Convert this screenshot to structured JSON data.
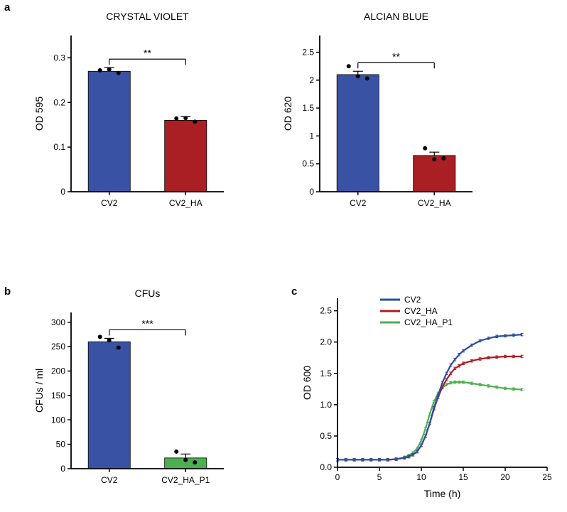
{
  "panelA": {
    "label": "a",
    "crystalViolet": {
      "title": "CRYSTAL VIOLET",
      "title_fontsize": 14,
      "ylabel": "OD 595",
      "ylabel_fontsize": 14,
      "ylim": [
        0.0,
        0.35
      ],
      "yticks": [
        0.0,
        0.1,
        0.2,
        0.3
      ],
      "categories": [
        "CV2",
        "CV2_HA"
      ],
      "values": [
        0.27,
        0.16
      ],
      "errors": [
        0.008,
        0.008
      ],
      "scatter": [
        [
          0.272,
          0.274,
          0.266
        ],
        [
          0.164,
          0.165,
          0.157
        ]
      ],
      "bar_colors": [
        "#3952a4",
        "#a91f24"
      ],
      "bg": "#ffffff",
      "axis_color": "#000000",
      "text_color": "#000000",
      "bar_width": 0.55,
      "significance": "**"
    },
    "alcianBlue": {
      "title": "ALCIAN BLUE",
      "title_fontsize": 14,
      "ylabel": "OD 620",
      "ylabel_fontsize": 14,
      "ylim": [
        0.0,
        2.8
      ],
      "yticks": [
        0.0,
        0.5,
        1.0,
        1.5,
        2.0,
        2.5
      ],
      "categories": [
        "CV2",
        "CV2_HA"
      ],
      "values": [
        2.1,
        0.65
      ],
      "errors": [
        0.06,
        0.06
      ],
      "scatter": [
        [
          2.25,
          2.07,
          2.03
        ],
        [
          0.78,
          0.58,
          0.6
        ]
      ],
      "bar_colors": [
        "#3952a4",
        "#a91f24"
      ],
      "bg": "#ffffff",
      "axis_color": "#000000",
      "text_color": "#000000",
      "bar_width": 0.55,
      "significance": "**"
    }
  },
  "panelB": {
    "label": "b",
    "cfu": {
      "title": "CFUs",
      "title_fontsize": 14,
      "ylabel": "CFUs / ml",
      "ylabel_fontsize": 14,
      "ylim": [
        0,
        320
      ],
      "yticks": [
        0,
        50,
        100,
        150,
        200,
        250,
        300
      ],
      "categories": [
        "CV2",
        "CV2_HA_P1"
      ],
      "values": [
        260,
        22
      ],
      "errors": [
        7,
        8
      ],
      "scatter": [
        [
          270,
          263,
          248
        ],
        [
          35,
          18,
          13
        ]
      ],
      "bar_colors": [
        "#3952a4",
        "#4caf50"
      ],
      "bg": "#ffffff",
      "axis_color": "#000000",
      "text_color": "#000000",
      "bar_width": 0.55,
      "significance": "***"
    }
  },
  "panelC": {
    "label": "c",
    "growth": {
      "xlabel": "Time (h)",
      "ylabel": "OD 600",
      "label_fontsize": 14,
      "xlim": [
        0,
        25
      ],
      "xticks": [
        0,
        5,
        10,
        15,
        20,
        25
      ],
      "ylim": [
        0,
        2.7
      ],
      "yticks": [
        0.0,
        0.5,
        1.0,
        1.5,
        2.0,
        2.5
      ],
      "legend": [
        "CV2",
        "CV2_HA",
        "CV2_HA_P1"
      ],
      "colors": [
        "#2b4ea0",
        "#a91f24",
        "#4caf50"
      ],
      "bg": "#ffffff",
      "axis_color": "#000000",
      "text_color": "#000000",
      "line_width": 2.2,
      "x": [
        0,
        1,
        2,
        3,
        4,
        5,
        6,
        7,
        8,
        8.5,
        9,
        9.5,
        10,
        10.5,
        11,
        11.5,
        12,
        12.5,
        13,
        13.5,
        14,
        14.5,
        15,
        16,
        17,
        18,
        19,
        20,
        21,
        22
      ],
      "series": {
        "CV2": [
          0.12,
          0.12,
          0.12,
          0.12,
          0.12,
          0.12,
          0.12,
          0.13,
          0.15,
          0.17,
          0.2,
          0.25,
          0.35,
          0.5,
          0.7,
          0.95,
          1.15,
          1.35,
          1.5,
          1.63,
          1.72,
          1.8,
          1.86,
          1.95,
          2.02,
          2.06,
          2.09,
          2.1,
          2.11,
          2.12
        ],
        "CV2_HA": [
          0.12,
          0.12,
          0.12,
          0.12,
          0.12,
          0.12,
          0.12,
          0.13,
          0.15,
          0.17,
          0.2,
          0.25,
          0.35,
          0.5,
          0.7,
          0.93,
          1.12,
          1.28,
          1.4,
          1.5,
          1.58,
          1.62,
          1.66,
          1.7,
          1.73,
          1.75,
          1.76,
          1.77,
          1.77,
          1.77
        ],
        "CV2_HA_P1": [
          0.12,
          0.12,
          0.12,
          0.12,
          0.12,
          0.12,
          0.12,
          0.13,
          0.16,
          0.19,
          0.23,
          0.3,
          0.43,
          0.62,
          0.85,
          1.05,
          1.18,
          1.27,
          1.32,
          1.35,
          1.36,
          1.36,
          1.36,
          1.34,
          1.32,
          1.3,
          1.28,
          1.26,
          1.25,
          1.24
        ]
      },
      "err": 0.02
    }
  }
}
